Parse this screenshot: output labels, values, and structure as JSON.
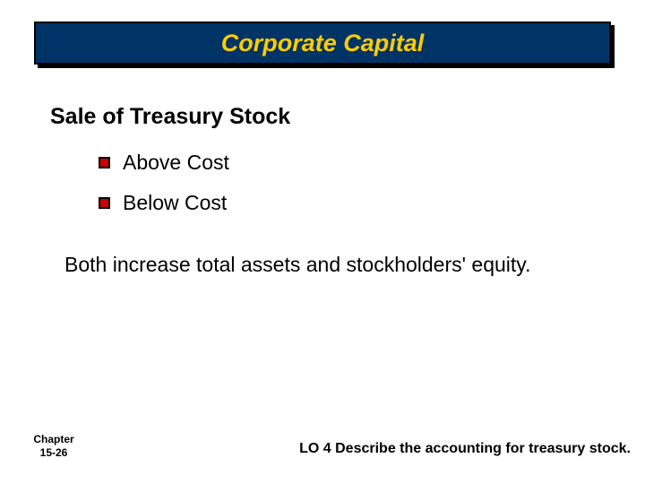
{
  "title": "Corporate Capital",
  "heading": "Sale of Treasury Stock",
  "bullets": [
    {
      "text": "Above Cost"
    },
    {
      "text": "Below Cost"
    }
  ],
  "body": "Both increase total assets and stockholders' equity.",
  "footer": {
    "chapter_label": "Chapter",
    "chapter_num": "15-26",
    "lo_text": "LO 4 Describe the accounting for treasury stock."
  },
  "colors": {
    "title_bg": "#003366",
    "title_text": "#ffcc00",
    "bullet_fill": "#cc0000",
    "bullet_border": "#000000",
    "text": "#000000",
    "page_bg": "#ffffff"
  }
}
